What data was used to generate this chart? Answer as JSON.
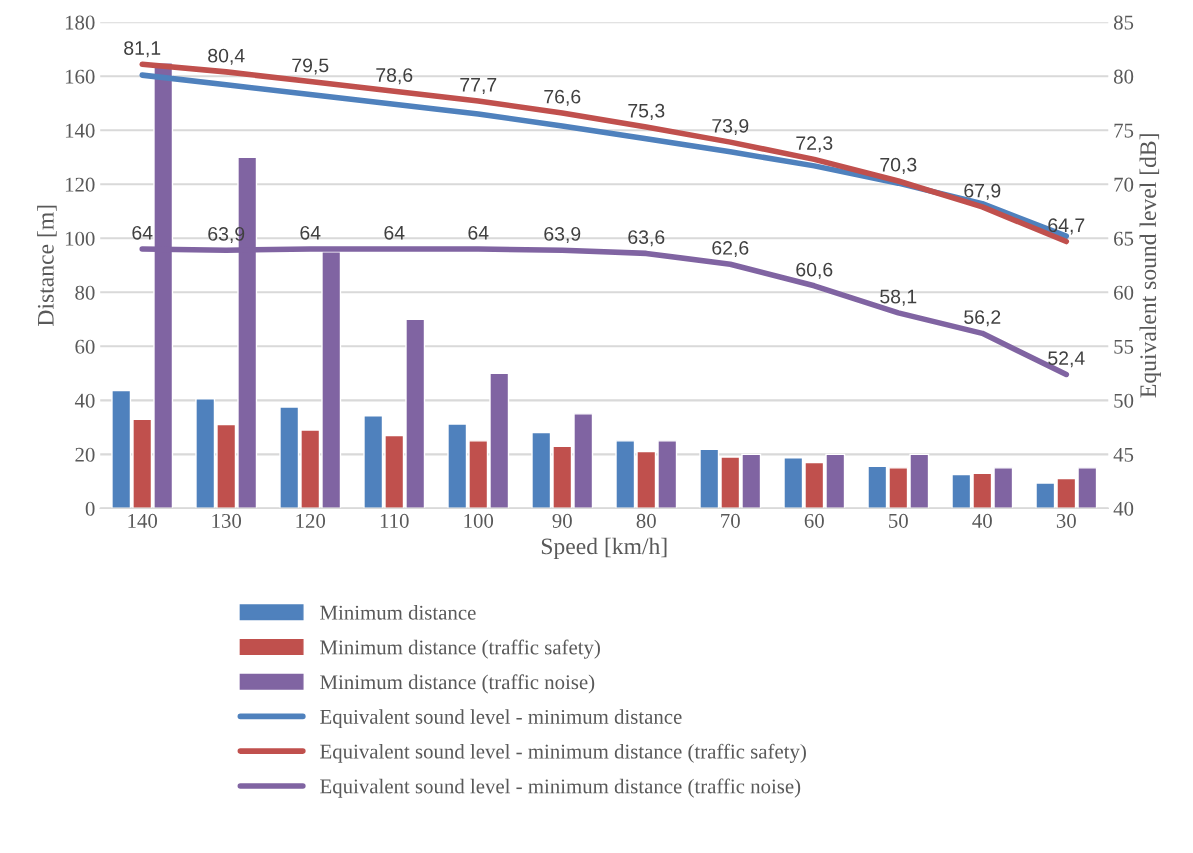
{
  "chart_data": {
    "type": "bar",
    "xlabel": "Speed [km/h]",
    "ylabel": "Distance [m]",
    "y2label": "Equivalent sound level [dB]",
    "categories": [
      "140",
      "130",
      "120",
      "110",
      "100",
      "90",
      "80",
      "70",
      "60",
      "50",
      "40",
      "30"
    ],
    "series": [
      {
        "name": "Minimum distance",
        "color": "#4f81bd",
        "values": [
          43.6,
          40.6,
          37.5,
          34.3,
          31.2,
          28.1,
          25,
          21.9,
          18.7,
          15.6,
          12.5,
          9.4
        ]
      },
      {
        "name": "Minimum distance (traffic safety)",
        "color": "#c0504d",
        "values": [
          33,
          31,
          29,
          27,
          25,
          23,
          21,
          19,
          17,
          15,
          13,
          11
        ]
      },
      {
        "name": "Minimum distance (traffic noise)",
        "color": "#8064a2",
        "values": [
          165,
          130,
          95,
          70,
          50,
          35,
          25,
          20,
          20,
          20,
          15,
          15
        ]
      },
      {
        "name": "Equivalent sound level - minimum distance",
        "type": "line",
        "axis": "y2",
        "color": "#4f81bd",
        "values": [
          80.1,
          79.2,
          78.3,
          77.4,
          76.5,
          75.4,
          74.2,
          73.0,
          71.7,
          70.1,
          68.2,
          65.2
        ]
      },
      {
        "name": "Equivalent sound level - minimum distance (traffic safety)",
        "type": "line",
        "axis": "y2",
        "color": "#c0504d",
        "values": [
          81.1,
          80.4,
          79.5,
          78.6,
          77.7,
          76.6,
          75.3,
          73.9,
          72.3,
          70.3,
          67.9,
          64.7
        ],
        "value_labels": [
          "81,1",
          "80,4",
          "79,5",
          "78,6",
          "77,7",
          "76,6",
          "75,3",
          "73,9",
          "72,3",
          "70,3",
          "67,9",
          "64,7"
        ]
      },
      {
        "name": "Equivalent sound level - minimum distance (traffic noise)",
        "type": "line",
        "axis": "y2",
        "color": "#8064a2",
        "values": [
          64,
          63.9,
          64,
          64,
          64,
          63.9,
          63.6,
          62.6,
          60.6,
          58.1,
          56.2,
          52.4
        ],
        "value_labels": [
          "64",
          "63,9",
          "64",
          "64",
          "64",
          "63,9",
          "63,6",
          "62,6",
          "60,6",
          "58,1",
          "56,2",
          "52,4"
        ]
      }
    ],
    "ylim": [
      0,
      180
    ],
    "yticks": [
      0,
      20,
      40,
      60,
      80,
      100,
      120,
      140,
      160,
      180
    ],
    "y2lim": [
      40,
      85
    ],
    "y2ticks": [
      40,
      45,
      50,
      55,
      60,
      65,
      70,
      75,
      80,
      85
    ],
    "grid": "y",
    "legend": "bottom"
  }
}
